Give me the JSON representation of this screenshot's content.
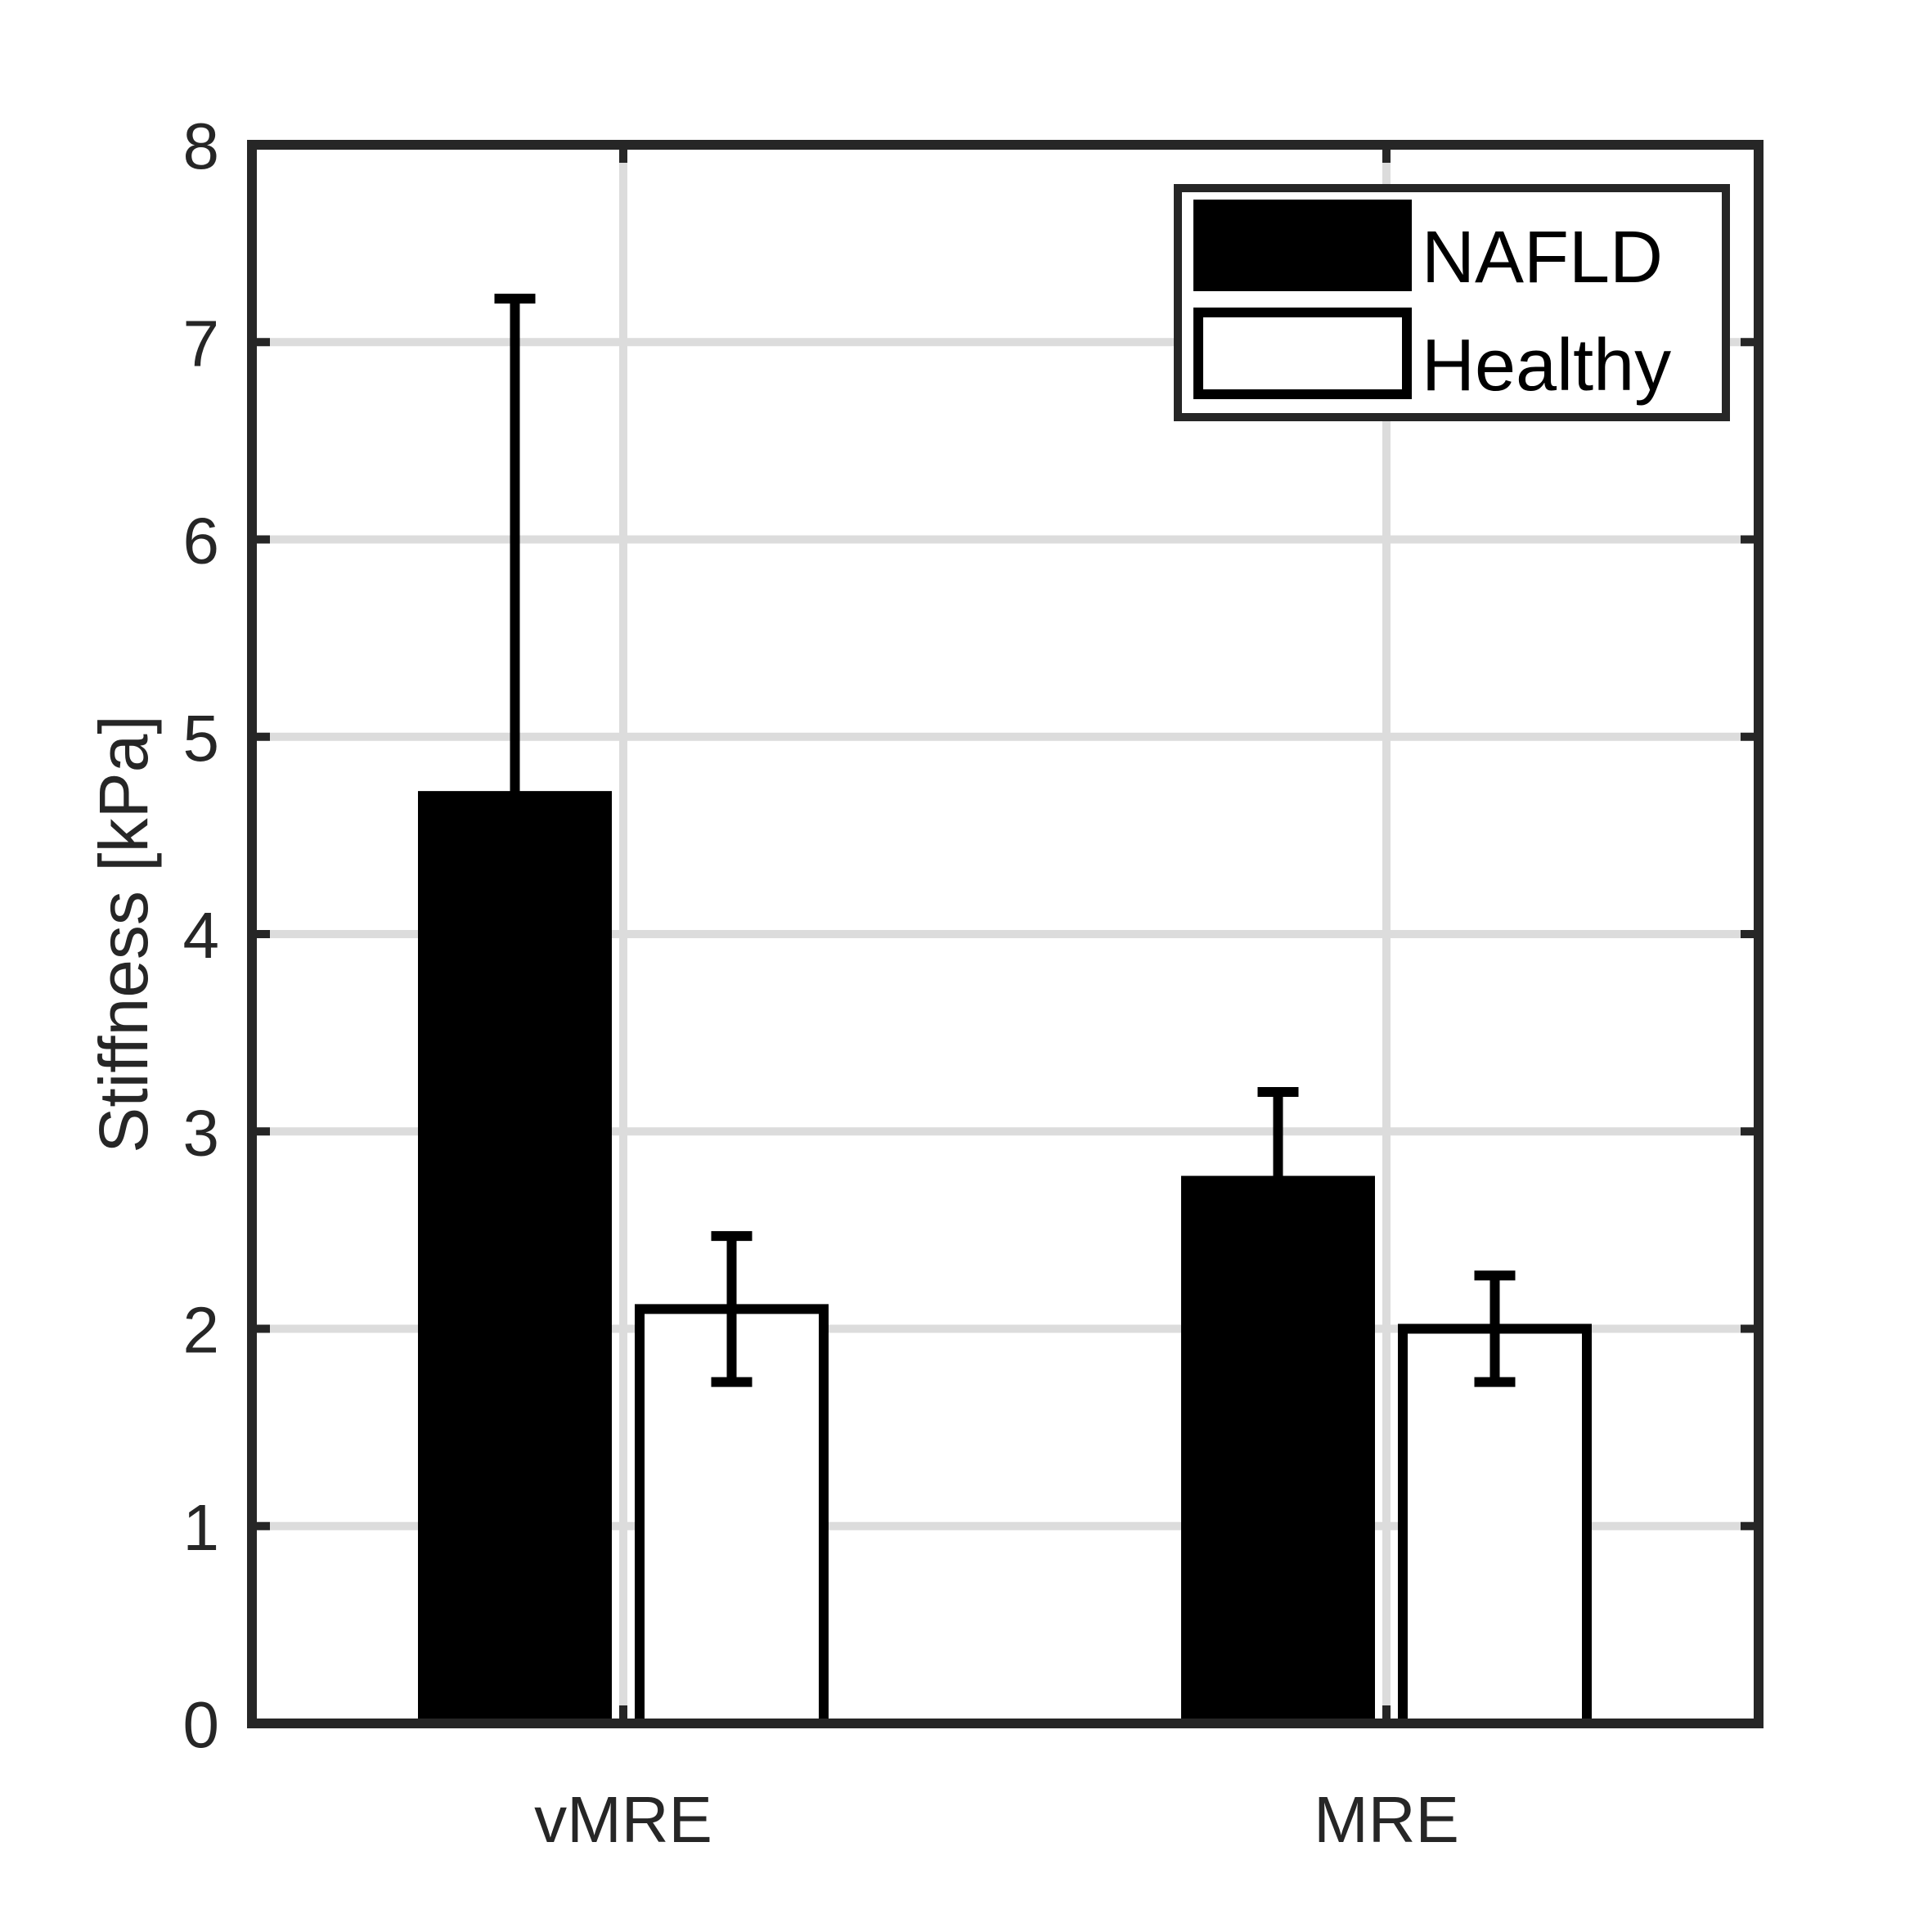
{
  "chart_data": {
    "type": "bar",
    "title": "",
    "xlabel": "",
    "ylabel": "Stiffness [kPa]",
    "categories": [
      "vMRE",
      "MRE"
    ],
    "series": [
      {
        "name": "NAFLD",
        "values": [
          4.7,
          2.75
        ],
        "error": [
          2.52,
          0.45
        ],
        "fill": "#000000"
      },
      {
        "name": "Healthy",
        "values": [
          2.1,
          2.0
        ],
        "error": [
          0.37,
          0.27
        ],
        "fill": "#ffffff"
      }
    ],
    "ylim": [
      0,
      8
    ],
    "yticks": [
      0,
      1,
      2,
      3,
      4,
      5,
      6,
      7,
      8
    ],
    "grid": true,
    "legend_position": "top-right",
    "colors": {
      "axis": "#262626",
      "grid": "#dcdcdc",
      "bar_edge": "#000000"
    }
  }
}
